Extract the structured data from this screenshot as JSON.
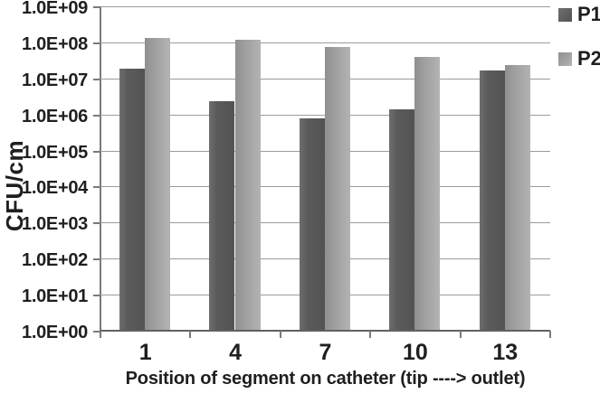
{
  "chart_data": {
    "type": "bar",
    "title": "",
    "xlabel": "Position of segment on catheter (tip ----> outlet)",
    "ylabel": "CFU/cm",
    "yscale": "log",
    "ylim": [
      1,
      1000000000
    ],
    "y_ticks": [
      "1.0E+09",
      "1.0E+08",
      "1.0E+07",
      "1.0E+06",
      "1.0E+05",
      "1.0E+04",
      "1.0E+03",
      "1.0E+02",
      "1.0E+01",
      "1.0E+00"
    ],
    "categories": [
      "1",
      "4",
      "7",
      "10",
      "13"
    ],
    "series": [
      {
        "name": "P1",
        "color": "#595959",
        "gradient": [
          "#6e6e6e",
          "#5b5b5b",
          "#535353"
        ],
        "values": [
          19000000,
          2400000,
          800000,
          1400000,
          17000000
        ]
      },
      {
        "name": "P2",
        "color": "#9c9c9c",
        "gradient": [
          "#8f8f8f",
          "#9c9c9c",
          "#b3b3b3"
        ],
        "values": [
          130000000,
          120000000,
          75000000,
          40000000,
          24000000
        ]
      }
    ],
    "grid": "horizontal",
    "legend_position": "top-right"
  },
  "colors": {
    "grid": "#9b9b9b",
    "axis": "#7a7a7a",
    "baseline": "#606060",
    "text": "#1f1f1f",
    "background": "#ffffff"
  }
}
